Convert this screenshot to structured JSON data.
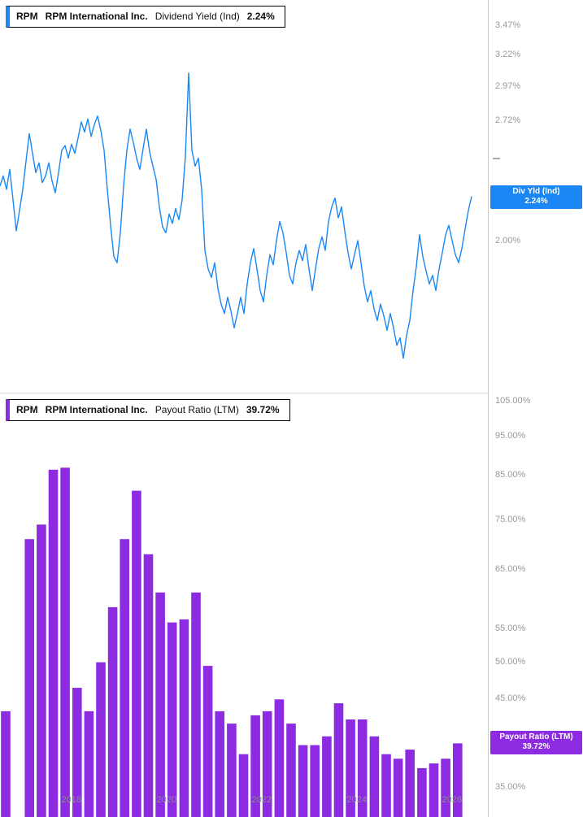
{
  "page": {
    "background": "#ffffff",
    "axis_line_color": "#c9c9c9",
    "tick_text_color": "#999999"
  },
  "panels": [
    {
      "legend": {
        "ticker": "RPM",
        "company": "RPM International Inc.",
        "metric": "Dividend Yield (Ind)",
        "value": "2.24%"
      },
      "badge": {
        "line1": "Div Yld (Ind)",
        "line2": "2.24%"
      }
    },
    {
      "legend": {
        "ticker": "RPM",
        "company": "RPM International Inc.",
        "metric": "Payout Ratio (LTM)",
        "value": "39.72%"
      },
      "badge": {
        "line1": "Payout Ratio (LTM)",
        "line2": "39.72%"
      }
    }
  ],
  "x_axis": {
    "labels": [
      {
        "text": "2018",
        "year": 2018
      },
      {
        "text": "2020",
        "year": 2020
      },
      {
        "text": "2022",
        "year": 2022
      },
      {
        "text": "2024",
        "year": 2024
      },
      {
        "text": "2026",
        "year": 2026
      }
    ]
  },
  "chart_data": [
    {
      "type": "line",
      "title": "RPM International Inc. — Dividend Yield (Indicated)",
      "series_name": "Div Yld (Ind)",
      "color": "#1b87f5",
      "y_scale": "log",
      "grid": false,
      "legend_position": "top-left",
      "x_range_years": [
        2016.5,
        2026.15
      ],
      "y_axis_range_pct": [
        1.36,
        3.7
      ],
      "current_value_pct": 2.24,
      "y_ticks": [
        {
          "label": "3.47%",
          "value": 3.47
        },
        {
          "label": "3.22%",
          "value": 3.22
        },
        {
          "label": "2.97%",
          "value": 2.97
        },
        {
          "label": "2.72%",
          "value": 2.72
        },
        {
          "label": "",
          "value": 2.47
        },
        {
          "label": "2.00%",
          "value": 2.0
        }
      ],
      "values_pct": [
        2.3,
        2.36,
        2.28,
        2.4,
        2.22,
        2.05,
        2.16,
        2.28,
        2.45,
        2.63,
        2.5,
        2.38,
        2.44,
        2.32,
        2.36,
        2.44,
        2.33,
        2.26,
        2.38,
        2.52,
        2.55,
        2.47,
        2.56,
        2.5,
        2.6,
        2.71,
        2.64,
        2.73,
        2.61,
        2.69,
        2.75,
        2.65,
        2.52,
        2.28,
        2.08,
        1.92,
        1.89,
        2.04,
        2.3,
        2.52,
        2.66,
        2.57,
        2.47,
        2.4,
        2.53,
        2.66,
        2.51,
        2.42,
        2.34,
        2.18,
        2.07,
        2.04,
        2.14,
        2.09,
        2.17,
        2.11,
        2.22,
        2.48,
        3.07,
        2.52,
        2.42,
        2.47,
        2.28,
        1.95,
        1.86,
        1.82,
        1.89,
        1.77,
        1.7,
        1.66,
        1.73,
        1.67,
        1.6,
        1.66,
        1.73,
        1.66,
        1.79,
        1.89,
        1.96,
        1.86,
        1.76,
        1.71,
        1.83,
        1.93,
        1.88,
        2.0,
        2.1,
        2.04,
        1.94,
        1.83,
        1.79,
        1.89,
        1.95,
        1.9,
        1.98,
        1.86,
        1.76,
        1.86,
        1.96,
        2.02,
        1.95,
        2.1,
        2.18,
        2.23,
        2.12,
        2.18,
        2.05,
        1.94,
        1.86,
        1.93,
        2.0,
        1.89,
        1.78,
        1.71,
        1.76,
        1.68,
        1.63,
        1.7,
        1.65,
        1.59,
        1.66,
        1.6,
        1.53,
        1.56,
        1.48,
        1.57,
        1.63,
        1.76,
        1.87,
        2.03,
        1.92,
        1.85,
        1.79,
        1.83,
        1.76,
        1.86,
        1.94,
        2.03,
        2.08,
        2.0,
        1.93,
        1.89,
        1.96,
        2.06,
        2.16,
        2.24
      ]
    },
    {
      "type": "bar",
      "title": "RPM International Inc. — Payout Ratio (LTM)",
      "series_name": "Payout Ratio (LTM)",
      "color": "#8c2be2",
      "y_scale": "log",
      "grid": false,
      "legend_position": "top-left",
      "x_start_year": 2016.62,
      "x_step_years": 0.25,
      "y_axis_range_pct": [
        32,
        107
      ],
      "current_value_pct": 39.72,
      "y_ticks": [
        {
          "label": "105.00%",
          "value": 105
        },
        {
          "label": "95.00%",
          "value": 95
        },
        {
          "label": "85.00%",
          "value": 85
        },
        {
          "label": "75.00%",
          "value": 75
        },
        {
          "label": "65.00%",
          "value": 65
        },
        {
          "label": "55.00%",
          "value": 55
        },
        {
          "label": "50.00%",
          "value": 50
        },
        {
          "label": "45.00%",
          "value": 45
        },
        {
          "label": "35.00%",
          "value": 35
        }
      ],
      "values_pct": [
        43.5,
        null,
        71,
        74,
        86.5,
        87,
        46.5,
        43.5,
        50,
        58.5,
        71,
        81.5,
        68,
        61,
        56,
        56.5,
        61,
        49.5,
        43.5,
        42,
        38.5,
        43,
        43.5,
        45,
        42,
        39.5,
        39.5,
        40.5,
        44.5,
        42.5,
        42.5,
        40.5,
        38.5,
        38,
        39,
        37,
        37.5,
        38,
        39.7
      ]
    }
  ]
}
